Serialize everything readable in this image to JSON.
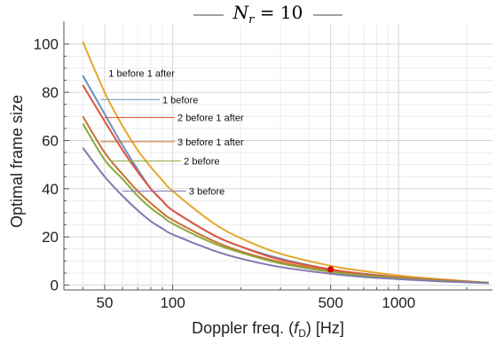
{
  "chart_data": {
    "type": "line",
    "title": {
      "symbol": "N",
      "subscript": "r",
      "equals": " = ",
      "value": "10"
    },
    "xlabel": {
      "prefix": "Doppler freq. (",
      "symbol": "f",
      "subscript": "D",
      "suffix": ") [Hz]"
    },
    "ylabel": "Optimal frame size",
    "xscale": "log",
    "xlim": [
      33,
      2600
    ],
    "ylim": [
      -2,
      108
    ],
    "xticks": [
      {
        "value": 50,
        "label": "50"
      },
      {
        "value": 100,
        "label": "100"
      },
      {
        "value": 500,
        "label": "500"
      },
      {
        "value": 1000,
        "label": "1000"
      }
    ],
    "yticks": [
      {
        "value": 0,
        "label": "0"
      },
      {
        "value": 20,
        "label": "20"
      },
      {
        "value": 40,
        "label": "40"
      },
      {
        "value": 60,
        "label": "60"
      },
      {
        "value": 80,
        "label": "80"
      },
      {
        "value": 100,
        "label": "100"
      }
    ],
    "grid": true,
    "series": [
      {
        "name": "1 before 1 after",
        "color": "#e5a82c",
        "x": [
          40,
          50,
          60,
          70,
          80,
          90,
          100,
          150,
          200,
          300,
          500,
          700,
          1000,
          1500,
          2500
        ],
        "y": [
          101,
          80,
          66,
          56,
          49,
          43.5,
          39,
          26,
          19.5,
          13,
          8,
          5.8,
          4,
          2.5,
          1
        ]
      },
      {
        "name": "1 before",
        "color": "#6a90c4",
        "x": [
          40,
          50,
          60,
          70,
          80,
          90,
          100,
          150,
          200,
          300,
          500,
          700,
          1000,
          1500,
          2500
        ],
        "y": [
          87,
          71,
          58,
          48,
          40,
          35,
          31,
          21,
          16,
          11,
          6.5,
          4.7,
          3.3,
          2.1,
          1
        ]
      },
      {
        "name": "2 before 1 after",
        "color": "#e0533a",
        "x": [
          40,
          50,
          60,
          70,
          80,
          90,
          100,
          150,
          200,
          300,
          500,
          700,
          1000,
          1500,
          2500
        ],
        "y": [
          83,
          68,
          56,
          47,
          40,
          35,
          31,
          21,
          16,
          10.5,
          6.5,
          4.6,
          3.3,
          2.1,
          1
        ]
      },
      {
        "name": "3 before 1 after",
        "color": "#c8702f",
        "x": [
          40,
          50,
          60,
          70,
          80,
          90,
          100,
          150,
          200,
          300,
          500,
          700,
          1000,
          1500,
          2500
        ],
        "y": [
          70,
          55,
          46,
          39,
          34,
          30,
          27,
          18.5,
          14,
          9.5,
          5.8,
          4.2,
          3,
          1.9,
          1
        ]
      },
      {
        "name": "2 before",
        "color": "#8aaa3c",
        "x": [
          40,
          50,
          60,
          70,
          80,
          90,
          100,
          150,
          200,
          300,
          500,
          700,
          1000,
          1500,
          2500
        ],
        "y": [
          67,
          52,
          44,
          37,
          32,
          28.5,
          25.5,
          17.5,
          13.5,
          9,
          5.5,
          4,
          2.9,
          1.8,
          1
        ]
      },
      {
        "name": "3 before",
        "color": "#8676b0",
        "x": [
          40,
          50,
          60,
          70,
          80,
          90,
          100,
          150,
          200,
          300,
          500,
          700,
          1000,
          1500,
          2500
        ],
        "y": [
          57,
          45,
          37,
          31,
          26.5,
          23.5,
          21,
          14.5,
          11,
          7.5,
          4.7,
          3.4,
          2.5,
          1.6,
          0.8
        ]
      }
    ],
    "annotations": [
      {
        "text": "1 before 1 after",
        "series": 0,
        "arrow_from_x": null,
        "label_x": 52,
        "label_y": 88
      },
      {
        "text": "1 before",
        "series": 1,
        "arrow_from_x": 48,
        "label_x": 90,
        "label_y": 77
      },
      {
        "text": "2 before 1 after",
        "series": 2,
        "arrow_from_x": 50,
        "label_x": 105,
        "label_y": 69.5
      },
      {
        "text": "3 before 1 after",
        "series": 3,
        "arrow_from_x": 48,
        "label_x": 105,
        "label_y": 59.5
      },
      {
        "text": "2 before",
        "series": 4,
        "arrow_from_x": 53,
        "label_x": 112,
        "label_y": 51.5
      },
      {
        "text": "3 before",
        "series": 5,
        "arrow_from_x": 60,
        "label_x": 118,
        "label_y": 39
      }
    ],
    "marker": {
      "x": 500,
      "y": 6.5,
      "color": "#dd0000"
    }
  }
}
